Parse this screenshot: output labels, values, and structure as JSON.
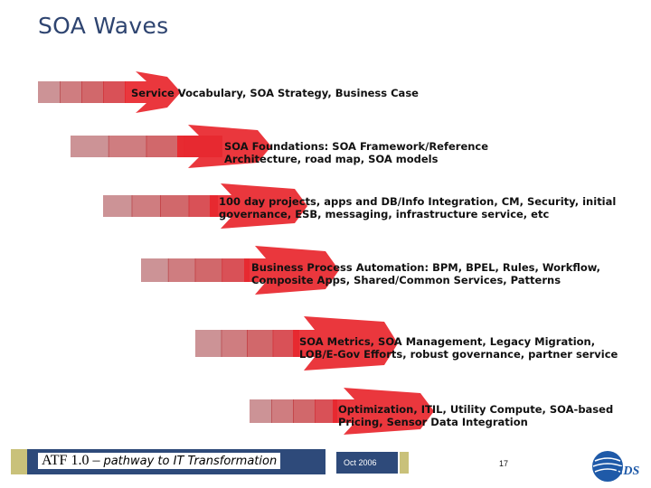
{
  "slide": {
    "title": "SOA Waves"
  },
  "waves": [
    {
      "text": [
        "Service Vocabulary, SOA Strategy, Business Case"
      ]
    },
    {
      "text": [
        "SOA Foundations: SOA Framework/Reference",
        "Architecture, road map, SOA models"
      ]
    },
    {
      "text": [
        "100 day projects, apps and DB/Info Integration, CM, Security, initial",
        "governance, ESB, messaging, infrastructure service, etc"
      ]
    },
    {
      "text": [
        "Business Process Automation: BPM, BPEL, Rules, Workflow,",
        "Composite Apps, Shared/Common Services, Patterns"
      ]
    },
    {
      "text": [
        "SOA Metrics, SOA Management, Legacy Migration,",
        "LOB/E-Gov Efforts, robust governance, partner service"
      ]
    },
    {
      "text": [
        "Optimization, ITIL, Utility Compute, SOA-based",
        "Pricing, Sensor Data Integration"
      ]
    }
  ],
  "footer": {
    "product": "ATF 1.0",
    "dash": " – ",
    "subtitle": "pathway to IT Transformation",
    "date": "Oct 2006",
    "page": "17",
    "logo_text": "EDS"
  },
  "colors": {
    "title": "#2e4470",
    "arrow_red": "#e8262c",
    "arrow_dark": "#a8383c",
    "footer_navy": "#2e4a7a",
    "footer_gold": "#c9c17a",
    "logo_blue": "#1f5aa8"
  }
}
